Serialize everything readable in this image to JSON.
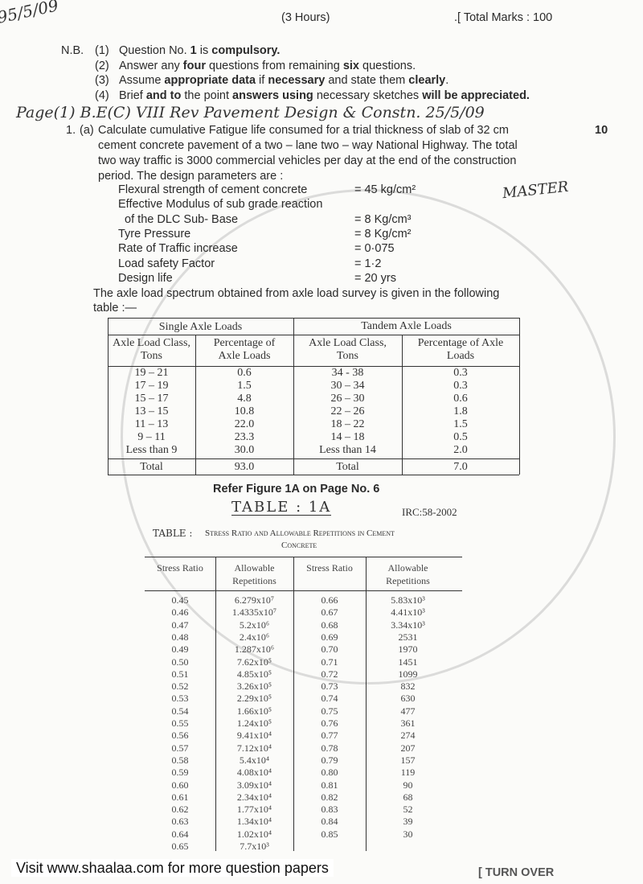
{
  "header": {
    "handwritten_code": "95/5/09",
    "duration": "(3 Hours)",
    "total_marks": ".[ Total Marks : 100"
  },
  "instructions": {
    "nb_label": "N.B.",
    "items": [
      {
        "num": "(1)",
        "parts": [
          "Question No. ",
          "1",
          " is ",
          "compulsory."
        ]
      },
      {
        "num": "(2)",
        "parts": [
          "Answer any ",
          "four",
          " questions from remaining ",
          "six",
          " questions."
        ]
      },
      {
        "num": "(3)",
        "parts": [
          "Assume ",
          "appropriate data",
          " if ",
          "necessary",
          " and state them ",
          "clearly",
          "."
        ]
      },
      {
        "num": "(4)",
        "parts": [
          "Brief",
          " and to ",
          "the point",
          " answers using ",
          "necessary sketches",
          " will be appreciated."
        ]
      }
    ]
  },
  "handwritten_note": "Page(1) B.E(C) VIII Rev Pavement Design & Constn. 25/5/09",
  "handwritten_master": "MASTER",
  "question": {
    "number": "1.",
    "part": "(a)",
    "marks": "10",
    "lines": [
      "Calculate cumulative Fatigue life consumed for a trial thickness of slab of 32 cm",
      "cement concrete pavement of a two – lane two – way National Highway.  The total",
      "two way traffic is 3000 commercial vehicles per day at the end of the construction",
      "period.  The design parameters are :"
    ],
    "parameters": [
      {
        "label": "Flexural strength of cement concrete",
        "value": "= 45 kg/cm²"
      },
      {
        "label": "Effective Modulus of sub grade reaction",
        "value": ""
      },
      {
        "label": "  of the DLC Sub- Base",
        "value": "= 8 Kg/cm³"
      },
      {
        "label": "Tyre Pressure",
        "value": "= 8 Kg/cm²"
      },
      {
        "label": "Rate of Traffic increase",
        "value": "= 0·075"
      },
      {
        "label": "Load safety Factor",
        "value": "= 1·2"
      },
      {
        "label": "Design life",
        "value": "= 20 yrs"
      }
    ],
    "after": [
      "The axle load spectrum obtained from axle load survey is given in the following",
      "table :—"
    ]
  },
  "axle_table": {
    "group_headers": [
      "Single Axle Loads",
      "Tandem Axle Loads"
    ],
    "col_headers": [
      [
        "Axle Load Class,",
        "Tons"
      ],
      [
        "Percentage of",
        "Axle Loads"
      ],
      [
        "Axle Load Class,",
        "Tons"
      ],
      [
        "Percentage of Axle",
        "Loads"
      ]
    ],
    "rows": [
      [
        "19 – 21",
        "0.6",
        "34 - 38",
        "0.3"
      ],
      [
        "17 – 19",
        "1.5",
        "30 – 34",
        "0.3"
      ],
      [
        "15 – 17",
        "4.8",
        "26 – 30",
        "0.6"
      ],
      [
        "13 – 15",
        "10.8",
        "22 – 26",
        "1.8"
      ],
      [
        "11 – 13",
        "22.0",
        "18 – 22",
        "1.5"
      ],
      [
        "9 – 11",
        "23.3",
        "14 – 18",
        "0.5"
      ],
      [
        "Less than 9",
        "30.0",
        "Less than 14",
        "2.0"
      ]
    ],
    "total": [
      "Total",
      "93.0",
      "Total",
      "7.0"
    ]
  },
  "refer": "Refer Figure 1A on Page No. 6",
  "table1a_handwritten": "TABLE : 1A",
  "irc": "IRC:58-2002",
  "stress_table": {
    "title_prefix": "TABLE :",
    "title": "Stress Ratio and Allowable Repetitions in Cement",
    "title2": "Concrete",
    "headers": [
      "Stress Ratio",
      [
        "Allowable",
        "Repetitions"
      ],
      "Stress Ratio",
      [
        "Allowable",
        "Repetitions"
      ]
    ],
    "left": [
      [
        "0.45",
        "6.279x10⁷"
      ],
      [
        "0.46",
        "1.4335x10⁷"
      ],
      [
        "0.47",
        "5.2x10⁶"
      ],
      [
        "0.48",
        "2.4x10⁶"
      ],
      [
        "0.49",
        "1.287x10⁶"
      ],
      [
        "0.50",
        "7.62x10⁵"
      ],
      [
        "0.51",
        "4.85x10⁵"
      ],
      [
        "0.52",
        "3.26x10⁵"
      ],
      [
        "0.53",
        "2.29x10⁵"
      ],
      [
        "0.54",
        "1.66x10⁵"
      ],
      [
        "0.55",
        "1.24x10⁵"
      ],
      [
        "0.56",
        "9.41x10⁴"
      ],
      [
        "0.57",
        "7.12x10⁴"
      ],
      [
        "0.58",
        "5.4x10⁴"
      ],
      [
        "0.59",
        "4.08x10⁴"
      ],
      [
        "0.60",
        "3.09x10⁴"
      ],
      [
        "0.61",
        "2.34x10⁴"
      ],
      [
        "0.62",
        "1.77x10⁴"
      ],
      [
        "0.63",
        "1.34x10⁴"
      ],
      [
        "0.64",
        "1.02x10⁴"
      ],
      [
        "0.65",
        "7.7x10³"
      ]
    ],
    "right": [
      [
        "0.66",
        "5.83x10³"
      ],
      [
        "0.67",
        "4.41x10³"
      ],
      [
        "0.68",
        "3.34x10³"
      ],
      [
        "0.69",
        "2531"
      ],
      [
        "0.70",
        "1970"
      ],
      [
        "0.71",
        "1451"
      ],
      [
        "0.72",
        "1099"
      ],
      [
        "0.73",
        "832"
      ],
      [
        "0.74",
        "630"
      ],
      [
        "0.75",
        "477"
      ],
      [
        "0.76",
        "361"
      ],
      [
        "0.77",
        "274"
      ],
      [
        "0.78",
        "207"
      ],
      [
        "0.79",
        "157"
      ],
      [
        "0.80",
        "119"
      ],
      [
        "0.81",
        "90"
      ],
      [
        "0.82",
        "68"
      ],
      [
        "0.83",
        "52"
      ],
      [
        "0.84",
        "39"
      ],
      [
        "0.85",
        "30"
      ]
    ]
  },
  "footer": {
    "text": "Visit www.shaalaa.com for more question papers",
    "turn_over": "[ TURN OVER"
  },
  "watermark": "shaalaa.com"
}
